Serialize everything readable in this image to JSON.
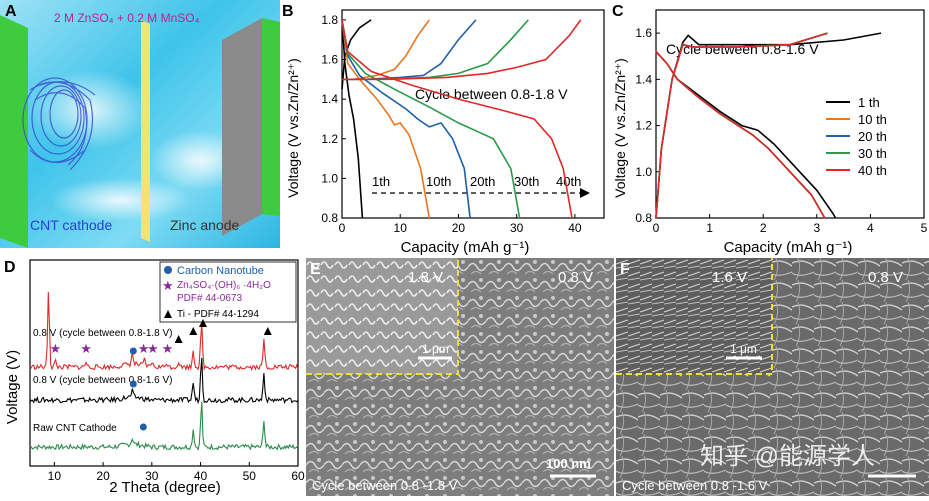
{
  "panelA": {
    "letter": "A",
    "electrolyte": "2 M ZnSO₄ + 0.2 M MnSO₄",
    "cathode": "CNT cathode",
    "anode": "Zinc anode"
  },
  "panelB": {
    "letter": "B",
    "ylabel": "Voltage (V vs.Zn/Zn²⁺)",
    "xlabel": "Capacity (mAh g⁻¹)",
    "annotation": "Cycle  between 0.8-1.8 V",
    "cycle_labels": [
      "1th",
      "10th",
      "20th",
      "30th",
      "40th"
    ]
  },
  "panelC": {
    "letter": "C",
    "ylabel": "Voltage (V vs.Zn/Zn²⁺)",
    "xlabel": "Capacity (mAh g⁻¹)",
    "annotation": "Cycle between 0.8-1.6 V",
    "legend": [
      "1 th",
      "10 th",
      "20 th",
      "30 th",
      "40 th"
    ]
  },
  "panelD": {
    "letter": "D",
    "ylabel": "Voltage (V)",
    "xlabel": "2 Theta (degree)",
    "legend": [
      "Carbon Nanotube",
      "Zn₄SO₄·(OH)₆ ·4H₂O",
      "PDF# 44-0673",
      "Ti - PDF# 44-1294"
    ],
    "traces": [
      "0.8 V (cycle between 0.8-1.8 V)",
      "0.8 V (cycle between 0.8-1.6 V)",
      "Raw CNT Cathode"
    ]
  },
  "panelE": {
    "letter": "E",
    "inset_voltage": "1.8 V",
    "main_voltage": "0.8 V",
    "inset_scale": "1 μm",
    "scale": "100 nm",
    "caption": "Cycle between 0.8 -1.8 V"
  },
  "panelF": {
    "letter": "F",
    "inset_voltage": "1.6 V",
    "main_voltage": "0.8 V",
    "inset_scale": "1 μm",
    "caption": "Cycle between 0.8 -1.6 V",
    "watermark": "知乎 @能源学人"
  },
  "chart_data": [
    {
      "type": "line",
      "panel": "B",
      "xlim": [
        0,
        45
      ],
      "ylim": [
        0.8,
        1.85
      ],
      "xticks": [
        0,
        10,
        20,
        30,
        40
      ],
      "yticks": [
        0.8,
        1.0,
        1.2,
        1.4,
        1.6,
        1.8
      ],
      "series": [
        {
          "name": "1th",
          "color": "#000000",
          "discharge": [
            [
              0,
              1.8
            ],
            [
              0.5,
              1.58
            ],
            [
              1.2,
              1.42
            ],
            [
              2,
              1.3
            ],
            [
              2.8,
              1.1
            ],
            [
              3.5,
              0.8
            ]
          ],
          "charge": [
            [
              0,
              1.45
            ],
            [
              0.5,
              1.62
            ],
            [
              1.5,
              1.7
            ],
            [
              3,
              1.76
            ],
            [
              5,
              1.8
            ]
          ]
        },
        {
          "name": "10th",
          "color": "#E87722",
          "discharge": [
            [
              0,
              1.8
            ],
            [
              1,
              1.58
            ],
            [
              3,
              1.5
            ],
            [
              6,
              1.4
            ],
            [
              8,
              1.32
            ],
            [
              9,
              1.27
            ],
            [
              10,
              1.28
            ],
            [
              11.5,
              1.22
            ],
            [
              13.5,
              1.05
            ],
            [
              15,
              0.8
            ]
          ],
          "charge": [
            [
              0,
              1.5
            ],
            [
              2,
              1.5
            ],
            [
              6,
              1.52
            ],
            [
              9,
              1.55
            ],
            [
              11,
              1.62
            ],
            [
              13,
              1.72
            ],
            [
              15,
              1.8
            ]
          ]
        },
        {
          "name": "20th",
          "color": "#1F5FA8",
          "discharge": [
            [
              0,
              1.8
            ],
            [
              1,
              1.62
            ],
            [
              3,
              1.52
            ],
            [
              7,
              1.43
            ],
            [
              11,
              1.35
            ],
            [
              13,
              1.3
            ],
            [
              15,
              1.26
            ],
            [
              17,
              1.28
            ],
            [
              19,
              1.2
            ],
            [
              21,
              1.05
            ],
            [
              22,
              0.8
            ]
          ],
          "charge": [
            [
              0,
              1.5
            ],
            [
              4,
              1.5
            ],
            [
              10,
              1.51
            ],
            [
              14,
              1.52
            ],
            [
              17,
              1.58
            ],
            [
              20,
              1.7
            ],
            [
              23,
              1.8
            ]
          ]
        },
        {
          "name": "30th",
          "color": "#2A9A48",
          "discharge": [
            [
              0,
              1.8
            ],
            [
              1,
              1.63
            ],
            [
              4,
              1.53
            ],
            [
              9,
              1.45
            ],
            [
              15,
              1.36
            ],
            [
              20,
              1.28
            ],
            [
              23,
              1.24
            ],
            [
              26,
              1.2
            ],
            [
              29,
              1.05
            ],
            [
              30.5,
              0.8
            ]
          ],
          "charge": [
            [
              0,
              1.5
            ],
            [
              6,
              1.5
            ],
            [
              15,
              1.51
            ],
            [
              20,
              1.53
            ],
            [
              25,
              1.58
            ],
            [
              29,
              1.7
            ],
            [
              32,
              1.8
            ]
          ]
        },
        {
          "name": "40th",
          "color": "#E02828",
          "discharge": [
            [
              0,
              1.8
            ],
            [
              1,
              1.64
            ],
            [
              5,
              1.54
            ],
            [
              12,
              1.47
            ],
            [
              20,
              1.4
            ],
            [
              28,
              1.34
            ],
            [
              33,
              1.3
            ],
            [
              36,
              1.2
            ],
            [
              38,
              1.05
            ],
            [
              39.5,
              0.8
            ]
          ],
          "charge": [
            [
              0,
              1.5
            ],
            [
              8,
              1.5
            ],
            [
              18,
              1.51
            ],
            [
              25,
              1.53
            ],
            [
              30,
              1.56
            ],
            [
              35,
              1.6
            ],
            [
              39,
              1.72
            ],
            [
              41,
              1.8
            ]
          ]
        }
      ]
    },
    {
      "type": "line",
      "panel": "C",
      "xlim": [
        0,
        5
      ],
      "ylim": [
        0.8,
        1.7
      ],
      "xticks": [
        0,
        1,
        2,
        3,
        4,
        5
      ],
      "yticks": [
        0.8,
        1.0,
        1.2,
        1.4,
        1.6
      ],
      "series": [
        {
          "name": "1 th",
          "color": "#000000",
          "discharge": [
            [
              0,
              1.52
            ],
            [
              0.2,
              1.47
            ],
            [
              0.4,
              1.4
            ],
            [
              0.8,
              1.33
            ],
            [
              1.2,
              1.26
            ],
            [
              1.6,
              1.2
            ],
            [
              1.9,
              1.18
            ],
            [
              2.2,
              1.12
            ],
            [
              2.6,
              1.02
            ],
            [
              3,
              0.92
            ],
            [
              3.3,
              0.82
            ],
            [
              3.35,
              0.8
            ]
          ],
          "charge": [
            [
              0,
              0.8
            ],
            [
              0.1,
              1.1
            ],
            [
              0.3,
              1.4
            ],
            [
              0.5,
              1.56
            ],
            [
              0.6,
              1.59
            ],
            [
              0.8,
              1.55
            ],
            [
              1.5,
              1.55
            ],
            [
              2.5,
              1.55
            ],
            [
              3.5,
              1.57
            ],
            [
              4.2,
              1.6
            ]
          ]
        },
        {
          "name": "10 th",
          "color": "#E87722",
          "discharge": [
            [
              0,
              1.52
            ],
            [
              0.2,
              1.47
            ],
            [
              0.4,
              1.4
            ],
            [
              0.8,
              1.32
            ],
            [
              1.2,
              1.25
            ],
            [
              1.6,
              1.19
            ],
            [
              1.8,
              1.16
            ],
            [
              2.1,
              1.1
            ],
            [
              2.5,
              1.0
            ],
            [
              2.9,
              0.9
            ],
            [
              3.15,
              0.8
            ]
          ],
          "charge": [
            [
              0,
              0.8
            ],
            [
              0.1,
              1.1
            ],
            [
              0.3,
              1.4
            ],
            [
              0.5,
              1.55
            ],
            [
              0.7,
              1.54
            ],
            [
              1.5,
              1.54
            ],
            [
              2.5,
              1.55
            ],
            [
              3.2,
              1.6
            ]
          ]
        },
        {
          "name": "20 th",
          "color": "#1F5FA8",
          "discharge": [
            [
              0,
              1.52
            ],
            [
              0.2,
              1.47
            ],
            [
              0.4,
              1.4
            ],
            [
              0.8,
              1.32
            ],
            [
              1.2,
              1.25
            ],
            [
              1.6,
              1.19
            ],
            [
              1.8,
              1.16
            ],
            [
              2.1,
              1.1
            ],
            [
              2.5,
              1.0
            ],
            [
              2.9,
              0.9
            ],
            [
              3.15,
              0.8
            ]
          ],
          "charge": [
            [
              0,
              0.8
            ],
            [
              0.1,
              1.1
            ],
            [
              0.3,
              1.4
            ],
            [
              0.5,
              1.55
            ],
            [
              0.7,
              1.54
            ],
            [
              1.5,
              1.54
            ],
            [
              2.5,
              1.55
            ],
            [
              3.2,
              1.6
            ]
          ]
        },
        {
          "name": "30 th",
          "color": "#2A9A48",
          "discharge": [
            [
              0,
              1.52
            ],
            [
              0.2,
              1.47
            ],
            [
              0.4,
              1.4
            ],
            [
              0.8,
              1.32
            ],
            [
              1.2,
              1.25
            ],
            [
              1.6,
              1.19
            ],
            [
              1.8,
              1.16
            ],
            [
              2.1,
              1.1
            ],
            [
              2.5,
              1.0
            ],
            [
              2.9,
              0.9
            ],
            [
              3.15,
              0.8
            ]
          ],
          "charge": [
            [
              0,
              0.8
            ],
            [
              0.1,
              1.1
            ],
            [
              0.3,
              1.4
            ],
            [
              0.5,
              1.55
            ],
            [
              0.7,
              1.54
            ],
            [
              1.5,
              1.54
            ],
            [
              2.5,
              1.55
            ],
            [
              3.2,
              1.6
            ]
          ]
        },
        {
          "name": "40 th",
          "color": "#E02828",
          "discharge": [
            [
              0,
              1.52
            ],
            [
              0.2,
              1.47
            ],
            [
              0.4,
              1.4
            ],
            [
              0.8,
              1.32
            ],
            [
              1.2,
              1.25
            ],
            [
              1.6,
              1.19
            ],
            [
              1.8,
              1.16
            ],
            [
              2.1,
              1.1
            ],
            [
              2.5,
              1.0
            ],
            [
              2.9,
              0.9
            ],
            [
              3.15,
              0.8
            ]
          ],
          "charge": [
            [
              0,
              0.8
            ],
            [
              0.1,
              1.1
            ],
            [
              0.3,
              1.4
            ],
            [
              0.5,
              1.55
            ],
            [
              0.7,
              1.54
            ],
            [
              1.5,
              1.54
            ],
            [
              2.5,
              1.55
            ],
            [
              3.2,
              1.6
            ]
          ]
        }
      ]
    },
    {
      "type": "line",
      "panel": "D",
      "xlim": [
        5,
        60
      ],
      "xticks": [
        10,
        20,
        30,
        40,
        50,
        60
      ],
      "series": [
        {
          "name": "0.8 V (cycle between 0.8-1.8 V)",
          "color": "#E02828",
          "offset": 2.0,
          "peaks": [
            [
              8.8,
              4.0
            ],
            [
              10.2,
              0.3
            ],
            [
              16.5,
              0.25
            ],
            [
              26,
              0.55
            ],
            [
              28.5,
              0.3
            ],
            [
              30,
              0.25
            ],
            [
              33,
              0.25
            ],
            [
              35.5,
              0.3
            ],
            [
              38.5,
              0.9
            ],
            [
              40.2,
              2.3
            ],
            [
              53,
              1.4
            ]
          ]
        },
        {
          "name": "0.8 V (cycle between 0.8-1.6 V)",
          "color": "#000000",
          "offset": 1.0,
          "peaks": [
            [
              26,
              0.3
            ],
            [
              38.5,
              0.9
            ],
            [
              40.2,
              2.3
            ],
            [
              53,
              1.4
            ]
          ]
        },
        {
          "name": "Raw CNT Cathode",
          "color": "#2A8A48",
          "offset": 0.0,
          "peaks": [
            [
              26,
              0.3
            ],
            [
              38.5,
              0.9
            ],
            [
              40.2,
              2.3
            ],
            [
              53,
              1.4
            ]
          ]
        }
      ],
      "markers": {
        "carbon_nanotube": [
          [
            26.2,
            0
          ],
          [
            26.2,
            1
          ],
          [
            26.2,
            2
          ]
        ],
        "zinc_hydroxide_sulfate": [
          [
            10.2,
            2
          ],
          [
            16.5,
            2
          ],
          [
            28.3,
            2
          ],
          [
            30.2,
            2
          ],
          [
            33.2,
            2
          ]
        ],
        "ti": [
          [
            35.5,
            2
          ],
          [
            38.5,
            2
          ],
          [
            40.5,
            2
          ],
          [
            53.8,
            2
          ]
        ]
      }
    }
  ]
}
